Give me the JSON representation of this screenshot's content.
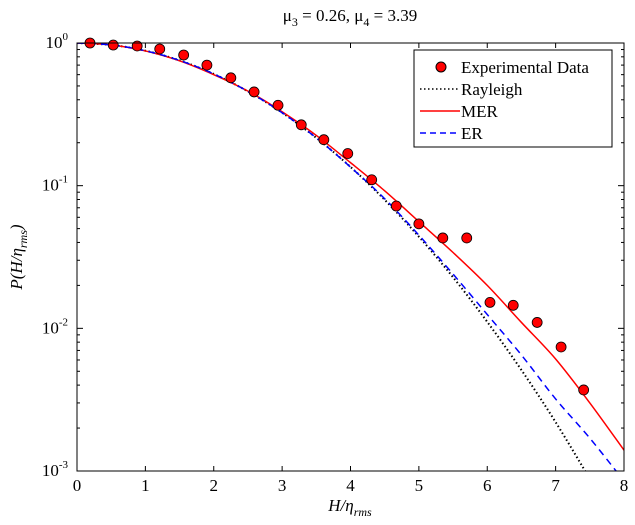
{
  "chart_data": {
    "type": "line",
    "title": "μ3 = 0.26, μ4 = 3.39",
    "title_parts": {
      "m3_label": "μ",
      "m3_sub": "3",
      "m3_val": " = 0.26, ",
      "m4_label": "μ",
      "m4_sub": "4",
      "m4_val": " = 3.39"
    },
    "xlabel": {
      "main": "H/η",
      "sub": "rms"
    },
    "ylabel": {
      "main": "P(H/η",
      "sub": "rms",
      "close": ")"
    },
    "xlim": [
      0,
      8
    ],
    "ylim": [
      0.001,
      1
    ],
    "yscale": "log",
    "xticks": [
      "0",
      "1",
      "2",
      "3",
      "4",
      "5",
      "6",
      "7",
      "8"
    ],
    "yticks": [
      {
        "base": "10",
        "exp": "0"
      },
      {
        "base": "10",
        "exp": "-1"
      },
      {
        "base": "10",
        "exp": "-2"
      },
      {
        "base": "10",
        "exp": "-3"
      }
    ],
    "legend_position": "top-right",
    "series": [
      {
        "name": "Experimental Data",
        "style": "markers",
        "color": "#ff0000",
        "x": [
          0.19,
          0.53,
          0.88,
          1.21,
          1.56,
          1.9,
          2.25,
          2.59,
          2.94,
          3.28,
          3.61,
          3.96,
          4.31,
          4.67,
          5.0,
          5.35,
          5.7,
          6.04,
          6.38,
          6.73,
          7.08,
          7.41
        ],
        "y": [
          1.0,
          0.968,
          0.953,
          0.908,
          0.824,
          0.7,
          0.57,
          0.454,
          0.366,
          0.267,
          0.21,
          0.168,
          0.11,
          0.072,
          0.054,
          0.043,
          0.043,
          0.0152,
          0.0145,
          0.011,
          0.0074,
          0.0037
        ]
      },
      {
        "name": "Rayleigh",
        "style": "dotted",
        "color": "#000000",
        "x": [
          0,
          0.5,
          1,
          1.5,
          2,
          2.5,
          3,
          3.5,
          4,
          4.5,
          5,
          5.5,
          6,
          6.5,
          7,
          7.5
        ],
        "y": [
          1,
          0.969,
          0.8825,
          0.7548,
          0.6065,
          0.4578,
          0.3247,
          0.2163,
          0.1353,
          0.0796,
          0.0439,
          0.0228,
          0.0111,
          0.0051,
          0.0022,
          0.00088
        ]
      },
      {
        "name": "MER",
        "style": "solid",
        "color": "#ff0000",
        "x": [
          0,
          0.5,
          1,
          1.5,
          2,
          2.5,
          3,
          3.5,
          4,
          4.5,
          5,
          5.5,
          6,
          6.5,
          7,
          7.5,
          8
        ],
        "y": [
          1,
          0.97,
          0.88,
          0.75,
          0.6,
          0.46,
          0.33,
          0.225,
          0.145,
          0.092,
          0.056,
          0.034,
          0.02,
          0.011,
          0.0061,
          0.003,
          0.0014
        ]
      },
      {
        "name": "ER",
        "style": "dashed",
        "color": "#0000ff",
        "x": [
          0,
          0.5,
          1,
          1.5,
          2,
          2.5,
          3,
          3.5,
          4,
          4.5,
          5,
          5.5,
          6,
          6.5,
          7,
          7.5,
          8
        ],
        "y": [
          1,
          0.969,
          0.8825,
          0.7548,
          0.6065,
          0.4578,
          0.3247,
          0.2163,
          0.135,
          0.081,
          0.045,
          0.024,
          0.0125,
          0.0065,
          0.0032,
          0.0017,
          0.00085
        ]
      }
    ]
  }
}
